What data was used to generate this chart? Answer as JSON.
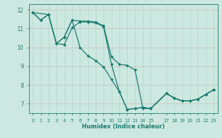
{
  "xlabel": "Humidex (Indice chaleur)",
  "xlim": [
    -0.5,
    23.5
  ],
  "ylim": [
    6.5,
    12.3
  ],
  "xticks": [
    0,
    1,
    2,
    3,
    4,
    5,
    6,
    7,
    8,
    9,
    10,
    11,
    12,
    13,
    14,
    15,
    17,
    18,
    19,
    20,
    21,
    22,
    23
  ],
  "yticks": [
    7,
    8,
    9,
    10,
    11,
    12
  ],
  "bg_color": "#cce8e0",
  "line_color": "#1a7a6e",
  "grid_color": "#b0d8d0",
  "lines": [
    {
      "x": [
        0,
        1,
        2,
        3,
        4,
        5,
        6,
        7,
        8,
        9,
        10,
        11,
        12,
        13,
        14,
        15,
        17,
        18,
        19,
        20,
        21,
        22,
        23
      ],
      "y": [
        11.85,
        11.45,
        11.75,
        10.2,
        10.15,
        11.05,
        11.35,
        11.35,
        11.3,
        11.1,
        9.1,
        7.65,
        6.7,
        6.75,
        6.8,
        6.75,
        7.55,
        7.3,
        7.15,
        7.15,
        7.25,
        7.5,
        7.75
      ]
    },
    {
      "x": [
        0,
        1,
        2,
        3,
        4,
        5,
        6,
        7,
        8,
        9,
        10,
        11,
        12,
        13,
        14,
        15,
        17,
        18,
        19,
        20,
        21,
        22,
        23
      ],
      "y": [
        11.85,
        11.45,
        11.75,
        10.2,
        10.55,
        11.45,
        11.4,
        11.4,
        11.35,
        11.15,
        9.5,
        9.1,
        9.05,
        8.8,
        6.75,
        6.75,
        7.55,
        7.3,
        7.15,
        7.15,
        7.25,
        7.5,
        7.75
      ]
    },
    {
      "x": [
        0,
        2,
        3,
        4,
        5,
        6,
        7,
        8,
        9,
        10,
        11,
        12,
        13,
        14,
        15,
        17,
        18,
        19,
        20,
        21,
        22,
        23
      ],
      "y": [
        11.85,
        11.75,
        10.2,
        10.55,
        11.45,
        10.0,
        9.55,
        9.3,
        8.95,
        8.3,
        7.65,
        6.7,
        6.75,
        6.8,
        6.75,
        7.55,
        7.3,
        7.15,
        7.15,
        7.25,
        7.5,
        7.75
      ]
    }
  ]
}
